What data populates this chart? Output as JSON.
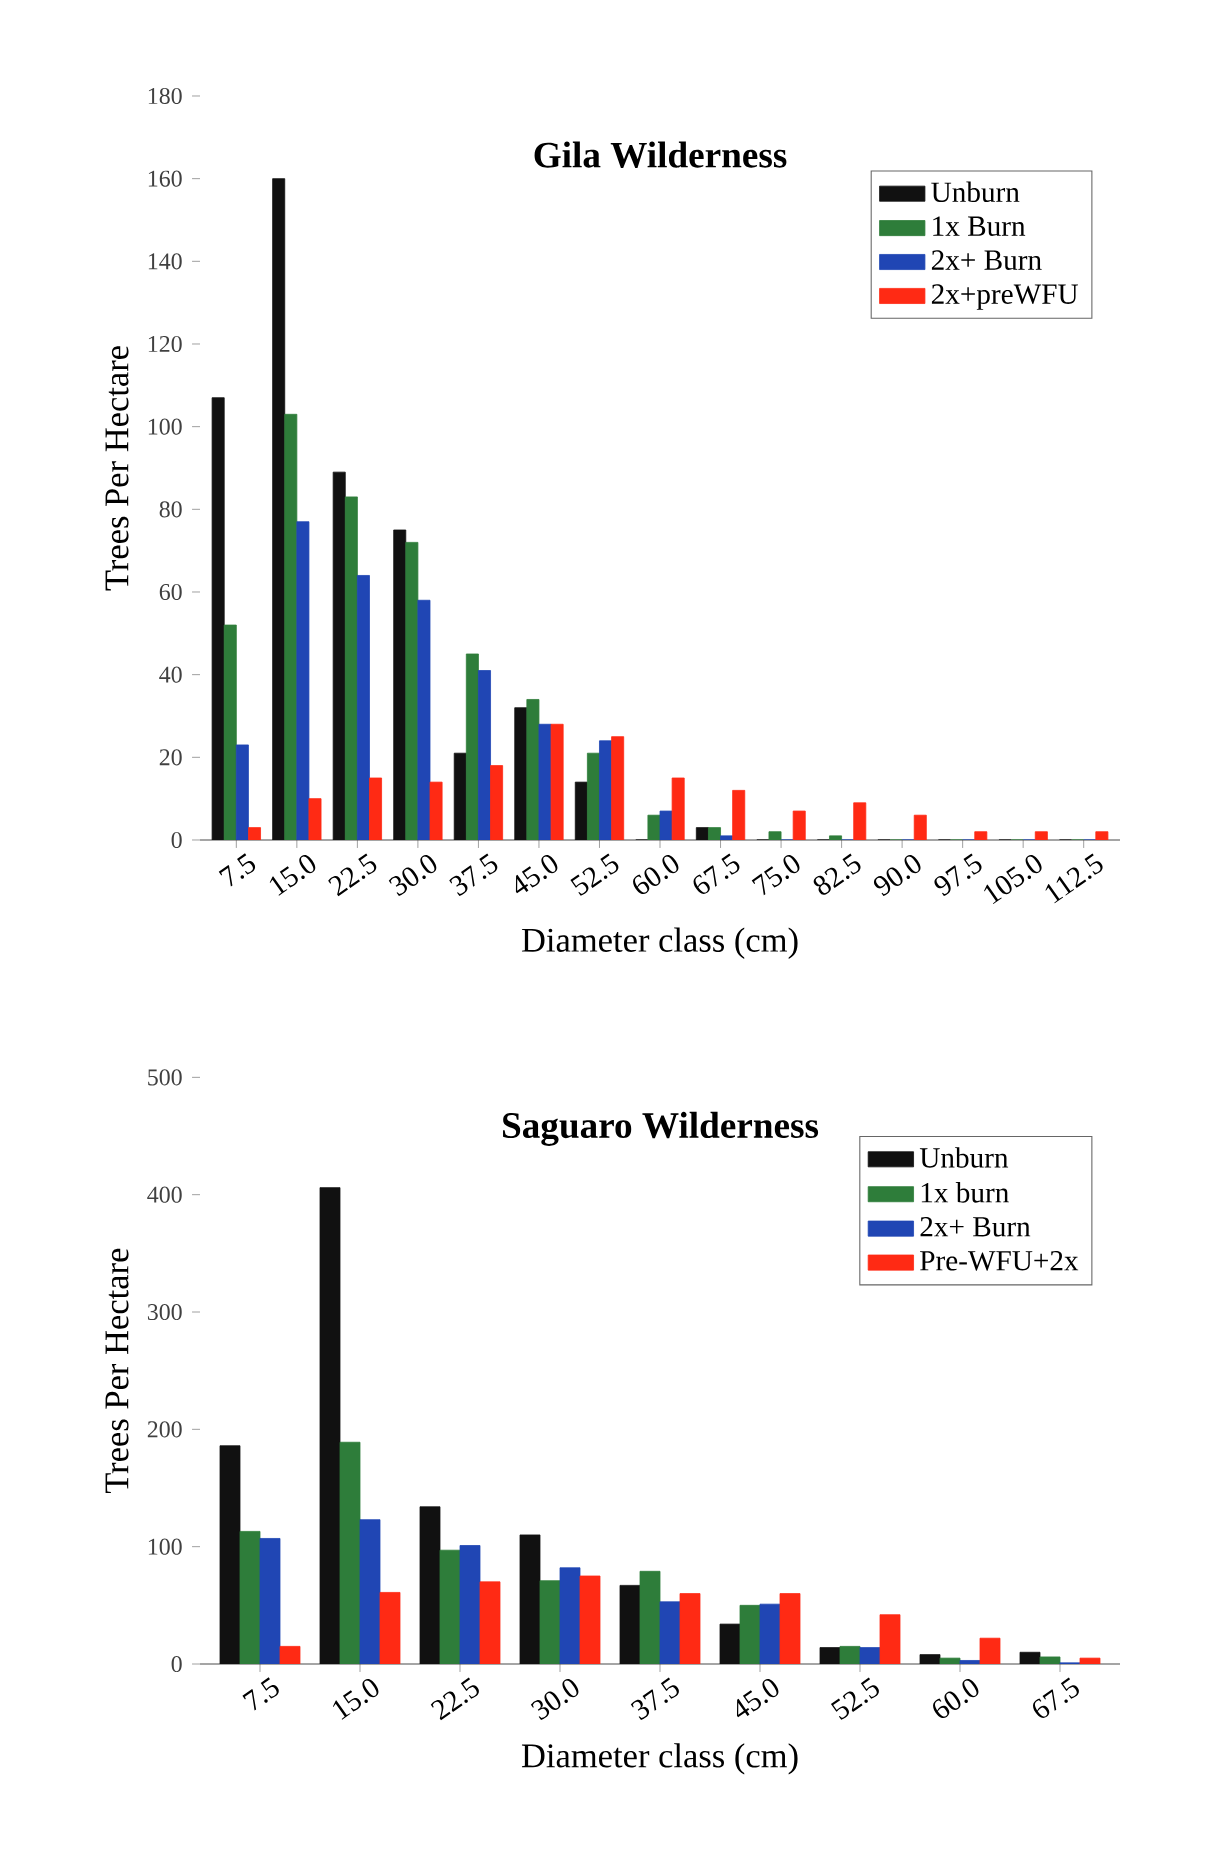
{
  "chart_data": [
    {
      "type": "bar",
      "title": "Gila Wilderness",
      "xlabel": "Diameter class (cm)",
      "ylabel": "Trees Per Hectare",
      "categories": [
        "7.5",
        "15.0",
        "22.5",
        "30.0",
        "37.5",
        "45.0",
        "52.5",
        "60.0",
        "67.5",
        "75.0",
        "82.5",
        "90.0",
        "97.5",
        "105.0",
        "112.5"
      ],
      "series": [
        {
          "name": "Unburn",
          "color": "#111111",
          "values": [
            107,
            160,
            89,
            75,
            21,
            32,
            14,
            0,
            3,
            0,
            0,
            0,
            0,
            0,
            0
          ]
        },
        {
          "name": "1x Burn",
          "color": "#2e7d3a",
          "values": [
            52,
            103,
            83,
            72,
            45,
            34,
            21,
            6,
            3,
            2,
            1,
            0,
            0,
            0,
            0
          ]
        },
        {
          "name": "2x+ Burn",
          "color": "#2046b4",
          "values": [
            23,
            77,
            64,
            58,
            41,
            28,
            24,
            7,
            1,
            0,
            0,
            0,
            0,
            0,
            0
          ]
        },
        {
          "name": "2x+preWFU",
          "color": "#ff2a14",
          "values": [
            3,
            10,
            15,
            14,
            18,
            28,
            25,
            15,
            12,
            7,
            9,
            6,
            2,
            2,
            2
          ]
        }
      ],
      "ylim": [
        0,
        180
      ],
      "yticks": [
        0,
        20,
        40,
        60,
        80,
        100,
        120,
        140,
        160,
        180
      ],
      "legend": "top right"
    },
    {
      "type": "bar",
      "title": "Saguaro Wilderness",
      "xlabel": "Diameter class (cm)",
      "ylabel": "Trees Per Hectare",
      "categories": [
        "7.5",
        "15.0",
        "22.5",
        "30.0",
        "37.5",
        "45.0",
        "52.5",
        "60.0",
        "67.5"
      ],
      "series": [
        {
          "name": "Unburn",
          "color": "#111111",
          "values": [
            186,
            406,
            134,
            110,
            67,
            34,
            14,
            8,
            10
          ]
        },
        {
          "name": "1x burn",
          "color": "#2e7d3a",
          "values": [
            113,
            189,
            97,
            71,
            79,
            50,
            15,
            5,
            6
          ]
        },
        {
          "name": "2x+ Burn",
          "color": "#2046b4",
          "values": [
            107,
            123,
            101,
            82,
            53,
            51,
            14,
            3,
            1
          ]
        },
        {
          "name": "Pre-WFU+2x",
          "color": "#ff2a14",
          "values": [
            15,
            61,
            70,
            75,
            60,
            60,
            42,
            22,
            5
          ]
        }
      ],
      "ylim": [
        0,
        500
      ],
      "yticks": [
        0,
        100,
        200,
        300,
        400,
        500
      ],
      "legend": "top right"
    }
  ]
}
